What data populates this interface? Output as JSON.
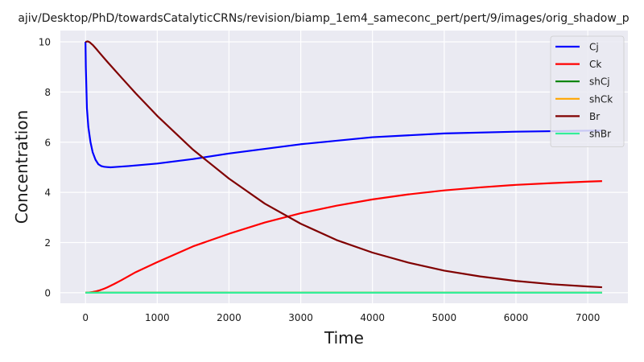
{
  "chart_data": {
    "type": "line",
    "title": "ajiv/Desktop/PhD/towardsCatalyticCRNs/revision/biamp_1em4_sameconc_pert/pert/9/images/orig_shadow_p",
    "xlabel": "Time",
    "ylabel": "Concentration",
    "xlim": [
      -350,
      7560
    ],
    "ylim": [
      -0.42,
      10.45
    ],
    "xticks": [
      0,
      1000,
      2000,
      3000,
      4000,
      5000,
      6000,
      7000
    ],
    "yticks": [
      0,
      2,
      4,
      6,
      8,
      10
    ],
    "grid": true,
    "legend_position": "upper right",
    "colors": {
      "background": "#eaeaf2",
      "grid": "#ffffff"
    },
    "series": [
      {
        "name": "Cj",
        "color": "#0000ff",
        "x": [
          0,
          5,
          20,
          40,
          70,
          100,
          140,
          180,
          220,
          260,
          300,
          350,
          400,
          600,
          1000,
          1500,
          2000,
          3000,
          4000,
          5000,
          6000,
          7000,
          7200
        ],
        "y": [
          10.0,
          9.0,
          7.35,
          6.6,
          6.0,
          5.6,
          5.3,
          5.12,
          5.05,
          5.02,
          5.01,
          5.0,
          5.01,
          5.05,
          5.15,
          5.33,
          5.55,
          5.92,
          6.2,
          6.35,
          6.42,
          6.46,
          6.46
        ]
      },
      {
        "name": "Ck",
        "color": "#ff0000",
        "x": [
          0,
          50,
          100,
          150,
          200,
          250,
          300,
          400,
          500,
          700,
          1000,
          1500,
          2000,
          2500,
          3000,
          3500,
          4000,
          4500,
          5000,
          5500,
          6000,
          6500,
          7000,
          7200
        ],
        "y": [
          0,
          0.01,
          0.03,
          0.06,
          0.1,
          0.15,
          0.21,
          0.35,
          0.5,
          0.82,
          1.22,
          1.85,
          2.35,
          2.8,
          3.17,
          3.47,
          3.72,
          3.92,
          4.08,
          4.2,
          4.3,
          4.37,
          4.43,
          4.45
        ]
      },
      {
        "name": "shCj",
        "color": "#008000",
        "x": [
          0,
          7200
        ],
        "y": [
          0,
          0
        ]
      },
      {
        "name": "shCk",
        "color": "#ffa500",
        "x": [
          0,
          7200
        ],
        "y": [
          0,
          0
        ]
      },
      {
        "name": "Br",
        "color": "#800000",
        "x": [
          0,
          30,
          60,
          100,
          150,
          200,
          300,
          400,
          500,
          700,
          1000,
          1500,
          2000,
          2500,
          3000,
          3500,
          4000,
          4500,
          5000,
          5500,
          6000,
          6500,
          7000,
          7200
        ],
        "y": [
          10.0,
          10.02,
          9.98,
          9.88,
          9.72,
          9.55,
          9.22,
          8.9,
          8.58,
          7.95,
          7.05,
          5.7,
          4.55,
          3.55,
          2.75,
          2.1,
          1.6,
          1.2,
          0.88,
          0.65,
          0.47,
          0.34,
          0.25,
          0.22
        ]
      },
      {
        "name": "shBr",
        "color": "#33ee99",
        "x": [
          0,
          7200
        ],
        "y": [
          0,
          0
        ]
      }
    ]
  }
}
